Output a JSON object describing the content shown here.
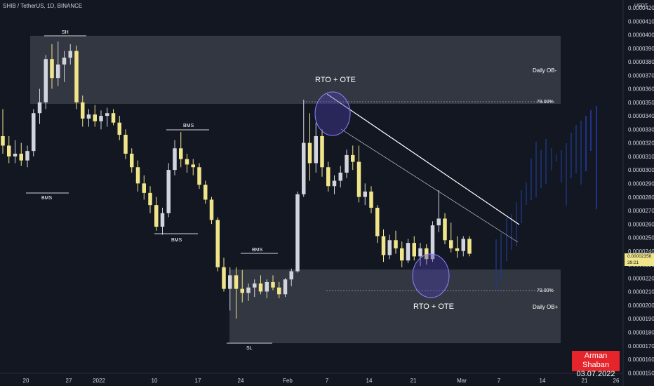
{
  "header": {
    "symbol": "SHIB / TetherUS, 1D, BINANCE",
    "unit": "USDT"
  },
  "price_axis": {
    "labels": [
      "0.00004200",
      "0.00004100",
      "0.00004000",
      "0.00003900",
      "0.00003800",
      "0.00003700",
      "0.00003600",
      "0.00003500",
      "0.00003400",
      "0.00003300",
      "0.00003200",
      "0.00003100",
      "0.00003000",
      "0.00002900",
      "0.00002800",
      "0.00002700",
      "0.00002600",
      "0.00002500",
      "0.00002400",
      "0.00002300",
      "0.00002200",
      "0.00002100",
      "0.00002000",
      "0.00001900",
      "0.00001800",
      "0.00001700",
      "0.00001600",
      "0.00001500"
    ],
    "current_price": "0.00002356",
    "countdown": "39:21"
  },
  "time_axis": {
    "labels": [
      "20",
      "27",
      "2022",
      "10",
      "17",
      "24",
      "Feb",
      "7",
      "14",
      "21",
      "Mar",
      "7",
      "14",
      "21",
      "26"
    ]
  },
  "annotations": {
    "sh": "SH",
    "bms1": "BMS",
    "bms2": "BMS",
    "bms3": "BMS",
    "bms4": "BMS",
    "sl": "SL",
    "rto_top": "RTO + OTE",
    "rto_bottom": "RTO + OTE",
    "fib_top": "79.00%",
    "fib_bottom": "79.00%",
    "ob_minus": "Daily OB-",
    "ob_plus": "Daily OB+"
  },
  "author": {
    "name": "Arman Shaban",
    "date": "03.07.2022"
  },
  "colors": {
    "background": "#131722",
    "bull": "#d1d4dc",
    "bear": "#f1e58a",
    "projection": "#1e3a8a",
    "zone": "#3a3d47",
    "circle": "#4a3fb0",
    "author_bg": "#e5242b"
  },
  "chart_data": {
    "type": "candlestick",
    "title": "SHIB / TetherUS, 1D, BINANCE",
    "ylabel": "USDT",
    "ylim": [
      1.45e-05,
      4.25e-05
    ],
    "x_dates": [
      "2021-12-14",
      "2022-03-26"
    ],
    "candles": [
      {
        "o": 3.25e-05,
        "h": 3.45e-05,
        "l": 3.12e-05,
        "c": 3.18e-05
      },
      {
        "o": 3.18e-05,
        "h": 3.25e-05,
        "l": 3.05e-05,
        "c": 3.1e-05
      },
      {
        "o": 3.1e-05,
        "h": 3.22e-05,
        "l": 3.05e-05,
        "c": 3.12e-05
      },
      {
        "o": 3.12e-05,
        "h": 3.2e-05,
        "l": 3.03e-05,
        "c": 3.07e-05
      },
      {
        "o": 3.07e-05,
        "h": 3.18e-05,
        "l": 3.02e-05,
        "c": 3.14e-05
      },
      {
        "o": 3.14e-05,
        "h": 3.45e-05,
        "l": 3.1e-05,
        "c": 3.42e-05
      },
      {
        "o": 3.42e-05,
        "h": 3.6e-05,
        "l": 3.34e-05,
        "c": 3.5e-05
      },
      {
        "o": 3.5e-05,
        "h": 3.85e-05,
        "l": 3.45e-05,
        "c": 3.82e-05
      },
      {
        "o": 3.82e-05,
        "h": 3.93e-05,
        "l": 3.6e-05,
        "c": 3.68e-05
      },
      {
        "o": 3.68e-05,
        "h": 3.95e-05,
        "l": 3.62e-05,
        "c": 3.78e-05
      },
      {
        "o": 3.78e-05,
        "h": 3.88e-05,
        "l": 3.65e-05,
        "c": 3.83e-05
      },
      {
        "o": 3.83e-05,
        "h": 3.93e-05,
        "l": 3.78e-05,
        "c": 3.88e-05
      },
      {
        "o": 3.88e-05,
        "h": 3.92e-05,
        "l": 3.45e-05,
        "c": 3.5e-05
      },
      {
        "o": 3.5e-05,
        "h": 3.55e-05,
        "l": 3.32e-05,
        "c": 3.38e-05
      },
      {
        "o": 3.38e-05,
        "h": 3.45e-05,
        "l": 3.32e-05,
        "c": 3.41e-05
      },
      {
        "o": 3.41e-05,
        "h": 3.48e-05,
        "l": 3.32e-05,
        "c": 3.36e-05
      },
      {
        "o": 3.36e-05,
        "h": 3.44e-05,
        "l": 3.3e-05,
        "c": 3.4e-05
      },
      {
        "o": 3.4e-05,
        "h": 3.46e-05,
        "l": 3.32e-05,
        "c": 3.42e-05
      },
      {
        "o": 3.42e-05,
        "h": 3.45e-05,
        "l": 3.33e-05,
        "c": 3.35e-05
      },
      {
        "o": 3.35e-05,
        "h": 3.4e-05,
        "l": 3.22e-05,
        "c": 3.26e-05
      },
      {
        "o": 3.26e-05,
        "h": 3.3e-05,
        "l": 3.08e-05,
        "c": 3.12e-05
      },
      {
        "o": 3.12e-05,
        "h": 3.16e-05,
        "l": 2.98e-05,
        "c": 3.02e-05
      },
      {
        "o": 3.02e-05,
        "h": 3.07e-05,
        "l": 2.84e-05,
        "c": 2.9e-05
      },
      {
        "o": 2.9e-05,
        "h": 2.96e-05,
        "l": 2.78e-05,
        "c": 2.83e-05
      },
      {
        "o": 2.83e-05,
        "h": 2.88e-05,
        "l": 2.68e-05,
        "c": 2.74e-05
      },
      {
        "o": 2.74e-05,
        "h": 2.8e-05,
        "l": 2.55e-05,
        "c": 2.58e-05
      },
      {
        "o": 2.58e-05,
        "h": 2.72e-05,
        "l": 2.52e-05,
        "c": 2.68e-05
      },
      {
        "o": 2.68e-05,
        "h": 3.05e-05,
        "l": 2.65e-05,
        "c": 3e-05
      },
      {
        "o": 3e-05,
        "h": 3.22e-05,
        "l": 2.96e-05,
        "c": 3.16e-05
      },
      {
        "o": 3.16e-05,
        "h": 3.28e-05,
        "l": 3.02e-05,
        "c": 3.08e-05
      },
      {
        "o": 3.08e-05,
        "h": 3.12e-05,
        "l": 2.98e-05,
        "c": 3.04e-05
      },
      {
        "o": 3.04e-05,
        "h": 3.08e-05,
        "l": 2.96e-05,
        "c": 3.02e-05
      },
      {
        "o": 3.02e-05,
        "h": 3.05e-05,
        "l": 2.86e-05,
        "c": 2.89e-05
      },
      {
        "o": 2.89e-05,
        "h": 2.92e-05,
        "l": 2.75e-05,
        "c": 2.78e-05
      },
      {
        "o": 2.78e-05,
        "h": 2.8e-05,
        "l": 2.6e-05,
        "c": 2.63e-05
      },
      {
        "o": 2.63e-05,
        "h": 2.65e-05,
        "l": 2.25e-05,
        "c": 2.28e-05
      },
      {
        "o": 2.28e-05,
        "h": 2.35e-05,
        "l": 2.1e-05,
        "c": 2.12e-05
      },
      {
        "o": 2.12e-05,
        "h": 2.28e-05,
        "l": 1.96e-05,
        "c": 2.22e-05
      },
      {
        "o": 2.22e-05,
        "h": 2.28e-05,
        "l": 1.9e-05,
        "c": 2.12e-05
      },
      {
        "o": 2.12e-05,
        "h": 2.26e-05,
        "l": 2.02e-05,
        "c": 2.09e-05
      },
      {
        "o": 2.09e-05,
        "h": 2.16e-05,
        "l": 2.03e-05,
        "c": 2.13e-05
      },
      {
        "o": 2.13e-05,
        "h": 2.19e-05,
        "l": 2.06e-05,
        "c": 2.16e-05
      },
      {
        "o": 2.16e-05,
        "h": 2.22e-05,
        "l": 2.08e-05,
        "c": 2.1e-05
      },
      {
        "o": 2.1e-05,
        "h": 2.19e-05,
        "l": 2.05e-05,
        "c": 2.17e-05
      },
      {
        "o": 2.17e-05,
        "h": 2.22e-05,
        "l": 2.11e-05,
        "c": 2.13e-05
      },
      {
        "o": 2.13e-05,
        "h": 2.17e-05,
        "l": 2.05e-05,
        "c": 2.08e-05
      },
      {
        "o": 2.08e-05,
        "h": 2.2e-05,
        "l": 2.06e-05,
        "c": 2.19e-05
      },
      {
        "o": 2.19e-05,
        "h": 2.27e-05,
        "l": 2.14e-05,
        "c": 2.25e-05
      },
      {
        "o": 2.25e-05,
        "h": 2.84e-05,
        "l": 2.24e-05,
        "c": 2.82e-05
      },
      {
        "o": 2.82e-05,
        "h": 3.52e-05,
        "l": 2.8e-05,
        "c": 3.2e-05
      },
      {
        "o": 3.2e-05,
        "h": 3.42e-05,
        "l": 2.92e-05,
        "c": 3.05e-05
      },
      {
        "o": 3.05e-05,
        "h": 3.35e-05,
        "l": 2.98e-05,
        "c": 3.25e-05
      },
      {
        "o": 3.25e-05,
        "h": 3.3e-05,
        "l": 2.95e-05,
        "c": 3.02e-05
      },
      {
        "o": 3.02e-05,
        "h": 3.06e-05,
        "l": 2.84e-05,
        "c": 2.88e-05
      },
      {
        "o": 2.88e-05,
        "h": 2.96e-05,
        "l": 2.82e-05,
        "c": 2.92e-05
      },
      {
        "o": 2.92e-05,
        "h": 3.03e-05,
        "l": 2.87e-05,
        "c": 2.98e-05
      },
      {
        "o": 2.98e-05,
        "h": 3.15e-05,
        "l": 2.94e-05,
        "c": 3.11e-05
      },
      {
        "o": 3.11e-05,
        "h": 3.18e-05,
        "l": 3e-05,
        "c": 3.06e-05
      },
      {
        "o": 3.06e-05,
        "h": 3.18e-05,
        "l": 2.76e-05,
        "c": 2.8e-05
      },
      {
        "o": 2.8e-05,
        "h": 2.9e-05,
        "l": 2.74e-05,
        "c": 2.84e-05
      },
      {
        "o": 2.84e-05,
        "h": 2.88e-05,
        "l": 2.68e-05,
        "c": 2.72e-05
      },
      {
        "o": 2.72e-05,
        "h": 2.74e-05,
        "l": 2.46e-05,
        "c": 2.51e-05
      },
      {
        "o": 2.51e-05,
        "h": 2.56e-05,
        "l": 2.32e-05,
        "c": 2.37e-05
      },
      {
        "o": 2.37e-05,
        "h": 2.52e-05,
        "l": 2.34e-05,
        "c": 2.48e-05
      },
      {
        "o": 2.48e-05,
        "h": 2.55e-05,
        "l": 2.38e-05,
        "c": 2.42e-05
      },
      {
        "o": 2.42e-05,
        "h": 2.47e-05,
        "l": 2.28e-05,
        "c": 2.33e-05
      },
      {
        "o": 2.33e-05,
        "h": 2.49e-05,
        "l": 2.31e-05,
        "c": 2.46e-05
      },
      {
        "o": 2.46e-05,
        "h": 2.51e-05,
        "l": 2.33e-05,
        "c": 2.36e-05
      },
      {
        "o": 2.36e-05,
        "h": 2.46e-05,
        "l": 2.29e-05,
        "c": 2.42e-05
      },
      {
        "o": 2.42e-05,
        "h": 2.45e-05,
        "l": 2.3e-05,
        "c": 2.34e-05
      },
      {
        "o": 2.34e-05,
        "h": 2.62e-05,
        "l": 2.32e-05,
        "c": 2.59e-05
      },
      {
        "o": 2.59e-05,
        "h": 2.85e-05,
        "l": 2.54e-05,
        "c": 2.64e-05
      },
      {
        "o": 2.64e-05,
        "h": 2.68e-05,
        "l": 2.45e-05,
        "c": 2.48e-05
      },
      {
        "o": 2.48e-05,
        "h": 2.61e-05,
        "l": 2.39e-05,
        "c": 2.42e-05
      },
      {
        "o": 2.42e-05,
        "h": 2.51e-05,
        "l": 2.35e-05,
        "c": 2.4e-05
      },
      {
        "o": 2.4e-05,
        "h": 2.51e-05,
        "l": 2.36e-05,
        "c": 2.49e-05
      },
      {
        "o": 2.49e-05,
        "h": 2.51e-05,
        "l": 2.36e-05,
        "c": 2.38e-05
      }
    ],
    "levels": [
      {
        "name": "Daily OB-",
        "top": 4e-05,
        "bottom": 3.49e-05
      },
      {
        "name": "Daily OB+",
        "top": 2.26e-05,
        "bottom": 1.71e-05
      },
      {
        "name": "79.00%",
        "value": 3.49e-05
      },
      {
        "name": "79.00%",
        "value": 2.11e-05
      }
    ],
    "current_price": 2.356e-05
  }
}
